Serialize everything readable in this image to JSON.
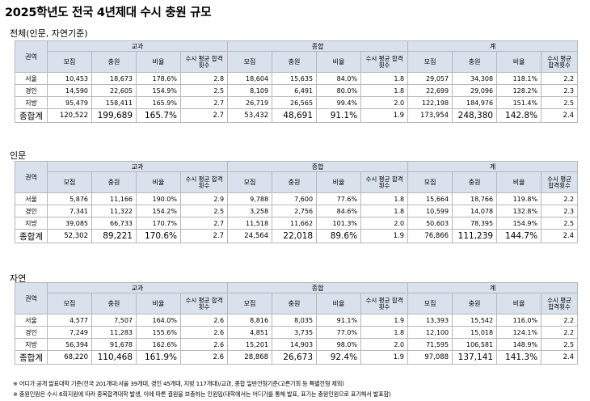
{
  "title": "2025학년도 전국 4년제대 수시 충원 규모",
  "headers": {
    "region": "권역",
    "groups": [
      "교과",
      "종합",
      "계"
    ],
    "cols": [
      "모집",
      "충원",
      "비율",
      "수시 평균 합격횟수"
    ]
  },
  "sections": [
    {
      "label": "전체(인문, 자연기준)",
      "rows": [
        {
          "region": "서울",
          "v": [
            "10,453",
            "18,673",
            "178.6%",
            "2.8",
            "18,604",
            "15,635",
            "84.0%",
            "1.8",
            "29,057",
            "34,308",
            "118.1%",
            "2.2"
          ]
        },
        {
          "region": "경인",
          "v": [
            "14,590",
            "22,605",
            "154.9%",
            "2.5",
            "8,109",
            "6,491",
            "80.0%",
            "1.8",
            "22,699",
            "29,096",
            "128.2%",
            "2.3"
          ]
        },
        {
          "region": "지방",
          "v": [
            "95,479",
            "158,411",
            "165.9%",
            "2.7",
            "26,719",
            "26,565",
            "99.4%",
            "2.0",
            "122,198",
            "184,976",
            "151.4%",
            "2.5"
          ]
        }
      ],
      "total": {
        "region": "종합계",
        "v": [
          "120,522",
          "199,689",
          "165.7%",
          "2.7",
          "53,432",
          "48,691",
          "91.1%",
          "1.9",
          "173,954",
          "248,380",
          "142.8%",
          "2.4"
        ]
      }
    },
    {
      "label": "인문",
      "rows": [
        {
          "region": "서울",
          "v": [
            "5,876",
            "11,166",
            "190.0%",
            "2.9",
            "9,788",
            "7,600",
            "77.6%",
            "1.8",
            "15,664",
            "18,766",
            "119.8%",
            "2.2"
          ]
        },
        {
          "region": "경인",
          "v": [
            "7,341",
            "11,322",
            "154.2%",
            "2.5",
            "3,258",
            "2,756",
            "84.6%",
            "1.8",
            "10,599",
            "14,078",
            "132.8%",
            "2.3"
          ]
        },
        {
          "region": "지방",
          "v": [
            "39,085",
            "66,733",
            "170.7%",
            "2.7",
            "11,518",
            "11,662",
            "101.3%",
            "2.0",
            "50,603",
            "78,395",
            "154.9%",
            "2.5"
          ]
        }
      ],
      "total": {
        "region": "종합계",
        "v": [
          "52,302",
          "89,221",
          "170.6%",
          "2.7",
          "24,564",
          "22,018",
          "89.6%",
          "1.9",
          "76,866",
          "111,239",
          "144.7%",
          "2.4"
        ]
      }
    },
    {
      "label": "자연",
      "rows": [
        {
          "region": "서울",
          "v": [
            "4,577",
            "7,507",
            "164.0%",
            "2.6",
            "8,816",
            "8,035",
            "91.1%",
            "1.9",
            "13,393",
            "15,542",
            "116.0%",
            "2.2"
          ]
        },
        {
          "region": "경인",
          "v": [
            "7,249",
            "11,283",
            "155.6%",
            "2.6",
            "4,851",
            "3,735",
            "77.0%",
            "1.8",
            "12,100",
            "15,018",
            "124.1%",
            "2.2"
          ]
        },
        {
          "region": "지방",
          "v": [
            "56,394",
            "91,678",
            "162.6%",
            "2.6",
            "15,201",
            "14,903",
            "98.0%",
            "2.0",
            "71,595",
            "106,581",
            "148.9%",
            "2.5"
          ]
        }
      ],
      "total": {
        "region": "종합계",
        "v": [
          "68,220",
          "110,468",
          "161.9%",
          "2.6",
          "28,868",
          "26,673",
          "92.4%",
          "1.9",
          "97,088",
          "137,141",
          "141.3%",
          "2.4"
        ]
      }
    }
  ],
  "notes": [
    "※  어디가 공개 발표대학 기준(전국 201개대:서울 39개대, 경인 45개대, 지방 117개대)/교과, 종합 일반전형기준(고른기회 등 특별전형  제외)",
    "※  충원인원은 수시 6회지원에 따라 중복합격대학 발생, 이에 따른 결원을 보충하는 인원임(대학에서는 어디가를 통해 발표, 표기는 충원인원으로  표기해서 발표함)"
  ]
}
